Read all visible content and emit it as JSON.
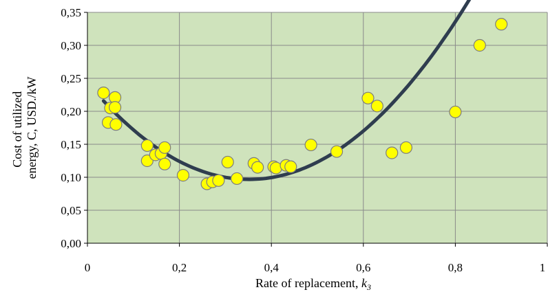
{
  "chart_data": {
    "type": "scatter",
    "xlabel": "Rate of replacement, ",
    "xlabel_var": "k",
    "xlabel_sub": "3",
    "ylabel_line1": "Cost of utilized",
    "ylabel_line2": "energy, C, USD./kW",
    "xlim": [
      0,
      1
    ],
    "ylim": [
      0,
      0.35
    ],
    "x_ticks": [
      0,
      0.2,
      0.4,
      0.6,
      0.8,
      1
    ],
    "x_tick_labels": [
      "0",
      "0,2",
      "0,4",
      "0,6",
      "0,8",
      "1"
    ],
    "y_ticks": [
      0,
      0.05,
      0.1,
      0.15,
      0.2,
      0.25,
      0.3,
      0.35
    ],
    "y_tick_labels": [
      "0,00",
      "0,05",
      "0,10",
      "0,15",
      "0,20",
      "0,25",
      "0,30",
      "0,35"
    ],
    "grid": true,
    "plot_background": "#cfe3bc",
    "grid_color": "#8a8a8a",
    "marker_fill": "#ffff00",
    "marker_stroke": "#7d7d7d",
    "trend_color": "#2f3d4f",
    "points": [
      {
        "x": 0.035,
        "y": 0.228
      },
      {
        "x": 0.045,
        "y": 0.183
      },
      {
        "x": 0.05,
        "y": 0.205
      },
      {
        "x": 0.06,
        "y": 0.221
      },
      {
        "x": 0.06,
        "y": 0.206
      },
      {
        "x": 0.062,
        "y": 0.18
      },
      {
        "x": 0.13,
        "y": 0.148
      },
      {
        "x": 0.13,
        "y": 0.125
      },
      {
        "x": 0.148,
        "y": 0.134
      },
      {
        "x": 0.16,
        "y": 0.136
      },
      {
        "x": 0.168,
        "y": 0.145
      },
      {
        "x": 0.168,
        "y": 0.12
      },
      {
        "x": 0.208,
        "y": 0.103
      },
      {
        "x": 0.26,
        "y": 0.09
      },
      {
        "x": 0.272,
        "y": 0.093
      },
      {
        "x": 0.285,
        "y": 0.095
      },
      {
        "x": 0.305,
        "y": 0.123
      },
      {
        "x": 0.325,
        "y": 0.098
      },
      {
        "x": 0.362,
        "y": 0.121
      },
      {
        "x": 0.37,
        "y": 0.115
      },
      {
        "x": 0.405,
        "y": 0.116
      },
      {
        "x": 0.41,
        "y": 0.114
      },
      {
        "x": 0.432,
        "y": 0.118
      },
      {
        "x": 0.442,
        "y": 0.116
      },
      {
        "x": 0.486,
        "y": 0.149
      },
      {
        "x": 0.542,
        "y": 0.139
      },
      {
        "x": 0.61,
        "y": 0.22
      },
      {
        "x": 0.63,
        "y": 0.208
      },
      {
        "x": 0.662,
        "y": 0.137
      },
      {
        "x": 0.693,
        "y": 0.145
      },
      {
        "x": 0.8,
        "y": 0.199
      },
      {
        "x": 0.853,
        "y": 0.3
      },
      {
        "x": 0.9,
        "y": 0.332
      }
    ],
    "trendline": {
      "type": "polynomial",
      "x_range": [
        0.035,
        0.9
      ],
      "coefficients": [
        0.2435,
        -0.835,
        1.188
      ]
    }
  }
}
